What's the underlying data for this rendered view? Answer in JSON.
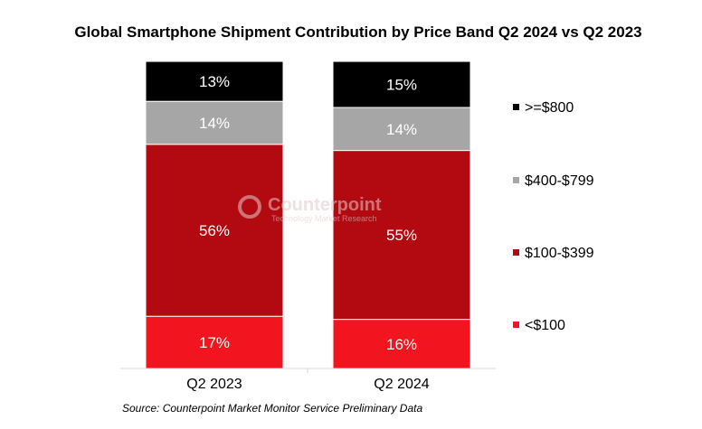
{
  "chart_data": {
    "type": "bar",
    "stacked": true,
    "title": "Global Smartphone Shipment Contribution by Price Band Q2 2024 vs Q2 2023",
    "categories": [
      "Q2 2023",
      "Q2 2024"
    ],
    "series": [
      {
        "name": "<$100",
        "values": [
          17,
          16
        ],
        "labels": [
          "17%",
          "16%"
        ],
        "color": "#f2141e"
      },
      {
        "name": "$100-$399",
        "values": [
          56,
          55
        ],
        "labels": [
          "56%",
          "55%"
        ],
        "color": "#b30a12"
      },
      {
        "name": "$400-$799",
        "values": [
          14,
          14
        ],
        "labels": [
          "14%",
          "14%"
        ],
        "color": "#a6a6a6"
      },
      {
        "name": ">=$800",
        "values": [
          13,
          15
        ],
        "labels": [
          "13%",
          "15%"
        ],
        "color": "#000000"
      }
    ],
    "legend_order": [
      ">=$800",
      "$400-$799",
      "$100-$399",
      "<$100"
    ],
    "legend_position": "right",
    "ylim": [
      0,
      100
    ],
    "grid": false,
    "xlabel": "",
    "ylabel": "",
    "source": "Source: Counterpoint Market Monitor Service Preliminary Data"
  },
  "watermark": {
    "brand": "Counterpoint",
    "tagline": "Technology Market Research"
  }
}
